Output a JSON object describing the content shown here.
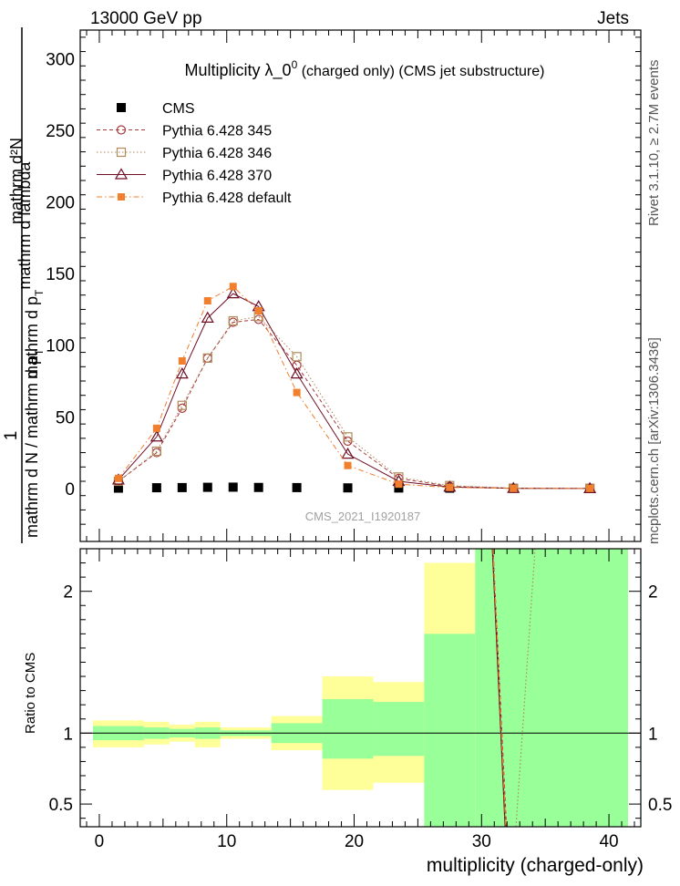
{
  "header": {
    "left": "13000 GeV pp",
    "right": "Jets"
  },
  "side_labels": {
    "rivet": "Rivet 3.1.10, ≥ 2.7M events",
    "mcplots": "mcplots.cern.ch [arXiv:1306.3436]"
  },
  "chart_data": [
    {
      "type": "line",
      "title_main": "Multiplicity  λ_0",
      "title_sup": "0",
      "title_rest": " (charged only) (CMS jet substructure)",
      "ylabel": {
        "one": "1",
        "lower": "mathrm d N / mathrm d p",
        "lower_sub": "T",
        "upper": "mathrm d p",
        "upper_sub": "T",
        "upper_rest": "mathrm d lambda",
        "numerator": "mathrm d²N"
      },
      "watermark": "CMS_2021_I1920187",
      "xlim": [
        -1.5,
        42.5
      ],
      "ylim": [
        -37,
        320
      ],
      "yticks": [
        0,
        50,
        100,
        150,
        200,
        250,
        300
      ],
      "legend_position": "top-left",
      "series": [
        {
          "name": "CMS",
          "color": "#000000",
          "marker": "filled-square",
          "x": [
            1.5,
            4.5,
            6.5,
            8.5,
            10.5,
            12.5,
            15.5,
            19.5,
            23.5,
            27.5,
            32.5,
            38.5
          ],
          "y": [
            0.2,
            0.5,
            0.6,
            0.8,
            0.9,
            0.7,
            0.6,
            0.4,
            0.3,
            0.2,
            0.1,
            0.05
          ]
        },
        {
          "name": "Pythia 6.428 345",
          "color": "#a8383c",
          "marker": "open-circle",
          "dash": "4,3",
          "x": [
            1.5,
            4.5,
            6.5,
            8.5,
            10.5,
            12.5,
            15.5,
            19.5,
            23.5,
            27.5,
            32.5,
            38.5
          ],
          "y": [
            5,
            25,
            56,
            91,
            116,
            118,
            86,
            33,
            7,
            1.5,
            0.1,
            0
          ]
        },
        {
          "name": "Pythia 6.428 346",
          "color": "#b08a5a",
          "marker": "open-square",
          "dash": "1.5,2.5",
          "x": [
            1.5,
            4.5,
            6.5,
            8.5,
            10.5,
            12.5,
            15.5,
            19.5,
            23.5,
            27.5,
            32.5,
            38.5
          ],
          "y": [
            5,
            26,
            58,
            91,
            117,
            120,
            92,
            36,
            8,
            2,
            0.2,
            0
          ]
        },
        {
          "name": "Pythia 6.428 370",
          "color": "#6e0f25",
          "marker": "open-triangle",
          "dash": "",
          "x": [
            1.5,
            4.5,
            6.5,
            8.5,
            10.5,
            12.5,
            15.5,
            19.5,
            23.5,
            27.5,
            32.5,
            38.5
          ],
          "y": [
            6,
            36,
            80,
            119,
            136,
            127,
            80,
            24,
            5,
            1,
            0.1,
            0
          ]
        },
        {
          "name": "Pythia 6.428 default",
          "color": "#f07f2e",
          "marker": "filled-square",
          "dash": "6,3,1.5,3",
          "x": [
            1.5,
            4.5,
            6.5,
            8.5,
            10.5,
            12.5,
            15.5,
            19.5,
            23.5,
            27.5,
            32.5,
            38.5
          ],
          "y": [
            7,
            42,
            89,
            131,
            141,
            124,
            67,
            16,
            3,
            0.7,
            0.05,
            0
          ]
        }
      ]
    },
    {
      "type": "area",
      "ylabel": "Ratio to CMS",
      "xlabel": "multiplicity (charged-only)",
      "xlim": [
        -1.5,
        42.5
      ],
      "ylim": [
        0.34,
        2.3
      ],
      "yticks": [
        0.5,
        1,
        2
      ],
      "xticks": [
        0,
        10,
        20,
        30,
        40
      ],
      "reference_line": 1,
      "bands": [
        {
          "x0": -0.5,
          "x1": 3.5,
          "outer": [
            0.9,
            1.09
          ],
          "inner": [
            0.95,
            1.05
          ]
        },
        {
          "x0": 3.5,
          "x1": 5.5,
          "outer": [
            0.92,
            1.08
          ],
          "inner": [
            0.96,
            1.04
          ]
        },
        {
          "x0": 5.5,
          "x1": 7.5,
          "outer": [
            0.94,
            1.06
          ],
          "inner": [
            0.97,
            1.03
          ]
        },
        {
          "x0": 7.5,
          "x1": 9.5,
          "outer": [
            0.9,
            1.08
          ],
          "inner": [
            0.96,
            1.04
          ]
        },
        {
          "x0": 9.5,
          "x1": 11.5,
          "outer": [
            0.96,
            1.04
          ],
          "inner": [
            0.98,
            1.02
          ]
        },
        {
          "x0": 11.5,
          "x1": 13.5,
          "outer": [
            0.96,
            1.04
          ],
          "inner": [
            0.98,
            1.02
          ]
        },
        {
          "x0": 13.5,
          "x1": 17.5,
          "outer": [
            0.88,
            1.12
          ],
          "inner": [
            0.93,
            1.07
          ]
        },
        {
          "x0": 17.5,
          "x1": 21.5,
          "outer": [
            0.6,
            1.4
          ],
          "inner": [
            0.82,
            1.24
          ]
        },
        {
          "x0": 21.5,
          "x1": 25.5,
          "outer": [
            0.65,
            1.36
          ],
          "inner": [
            0.84,
            1.22
          ]
        },
        {
          "x0": 25.5,
          "x1": 29.5,
          "outer": [
            0.34,
            2.2
          ],
          "inner": [
            0.34,
            1.7
          ]
        },
        {
          "x0": 29.5,
          "x1": 41.5,
          "outer": [
            0.34,
            2.3
          ],
          "inner": [
            0.34,
            2.3
          ]
        }
      ],
      "ratio_lines": [
        {
          "name": "Pythia 6.428 345",
          "color": "#a8383c",
          "dash": "4,3",
          "x": [
            30.9,
            31.95
          ],
          "y": [
            2.3,
            0.34
          ]
        },
        {
          "name": "Pythia 6.428 346",
          "color": "#b08a5a",
          "dash": "1.5,2.5",
          "x": [
            34.2,
            32.7
          ],
          "y": [
            2.3,
            0.34
          ]
        },
        {
          "name": "Pythia 6.428 370",
          "color": "#6e0f25",
          "dash": "",
          "x": [
            30.85,
            31.85
          ],
          "y": [
            2.3,
            0.34
          ]
        },
        {
          "name": "Pythia 6.428 default",
          "color": "#f07f2e",
          "dash": "6,3,1.5,3",
          "x": [
            30.9,
            31.9
          ],
          "y": [
            2.3,
            0.34
          ]
        }
      ]
    }
  ],
  "colors": {
    "band_outer": "#ffff99",
    "band_inner": "#99ff99"
  }
}
